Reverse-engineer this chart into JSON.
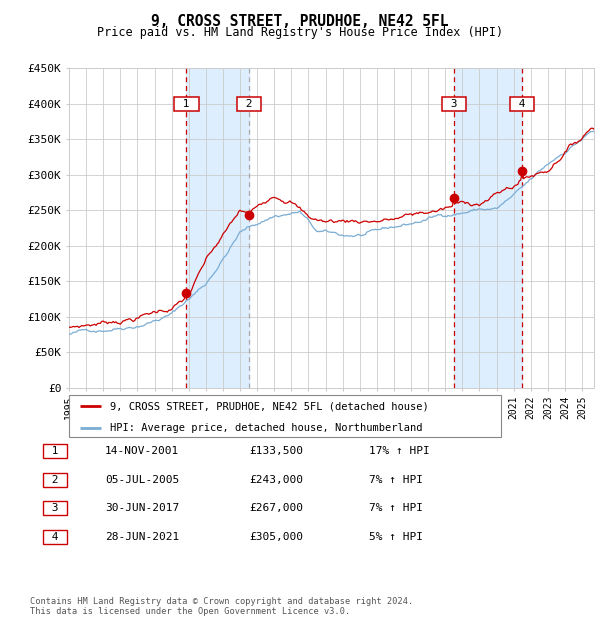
{
  "title": "9, CROSS STREET, PRUDHOE, NE42 5FL",
  "subtitle": "Price paid vs. HM Land Registry's House Price Index (HPI)",
  "legend_red": "9, CROSS STREET, PRUDHOE, NE42 5FL (detached house)",
  "legend_blue": "HPI: Average price, detached house, Northumberland",
  "footer1": "Contains HM Land Registry data © Crown copyright and database right 2024.",
  "footer2": "This data is licensed under the Open Government Licence v3.0.",
  "transactions": [
    {
      "num": 1,
      "date": "14-NOV-2001",
      "price": 133500,
      "hpi_pct": "17%",
      "date_num": 2001.87
    },
    {
      "num": 2,
      "date": "05-JUL-2005",
      "price": 243000,
      "hpi_pct": "7%",
      "date_num": 2005.51
    },
    {
      "num": 3,
      "date": "30-JUN-2017",
      "price": 267000,
      "hpi_pct": "7%",
      "date_num": 2017.5
    },
    {
      "num": 4,
      "date": "28-JUN-2021",
      "price": 305000,
      "hpi_pct": "5%",
      "date_num": 2021.49
    }
  ],
  "table_rows": [
    [
      "1",
      "14-NOV-2001",
      "£133,500",
      "17% ↑ HPI"
    ],
    [
      "2",
      "05-JUL-2005",
      "£243,000",
      "7% ↑ HPI"
    ],
    [
      "3",
      "30-JUN-2017",
      "£267,000",
      "7% ↑ HPI"
    ],
    [
      "4",
      "28-JUN-2021",
      "£305,000",
      "5% ↑ HPI"
    ]
  ],
  "ylim": [
    0,
    450000
  ],
  "yticks": [
    0,
    50000,
    100000,
    150000,
    200000,
    250000,
    300000,
    350000,
    400000,
    450000
  ],
  "xlim_start": 1995.0,
  "xlim_end": 2025.7,
  "red_color": "#cc0000",
  "blue_color": "#7aadd4",
  "shade_color": "#ddeeff",
  "grid_color": "#cccccc",
  "background_color": "#ffffff"
}
